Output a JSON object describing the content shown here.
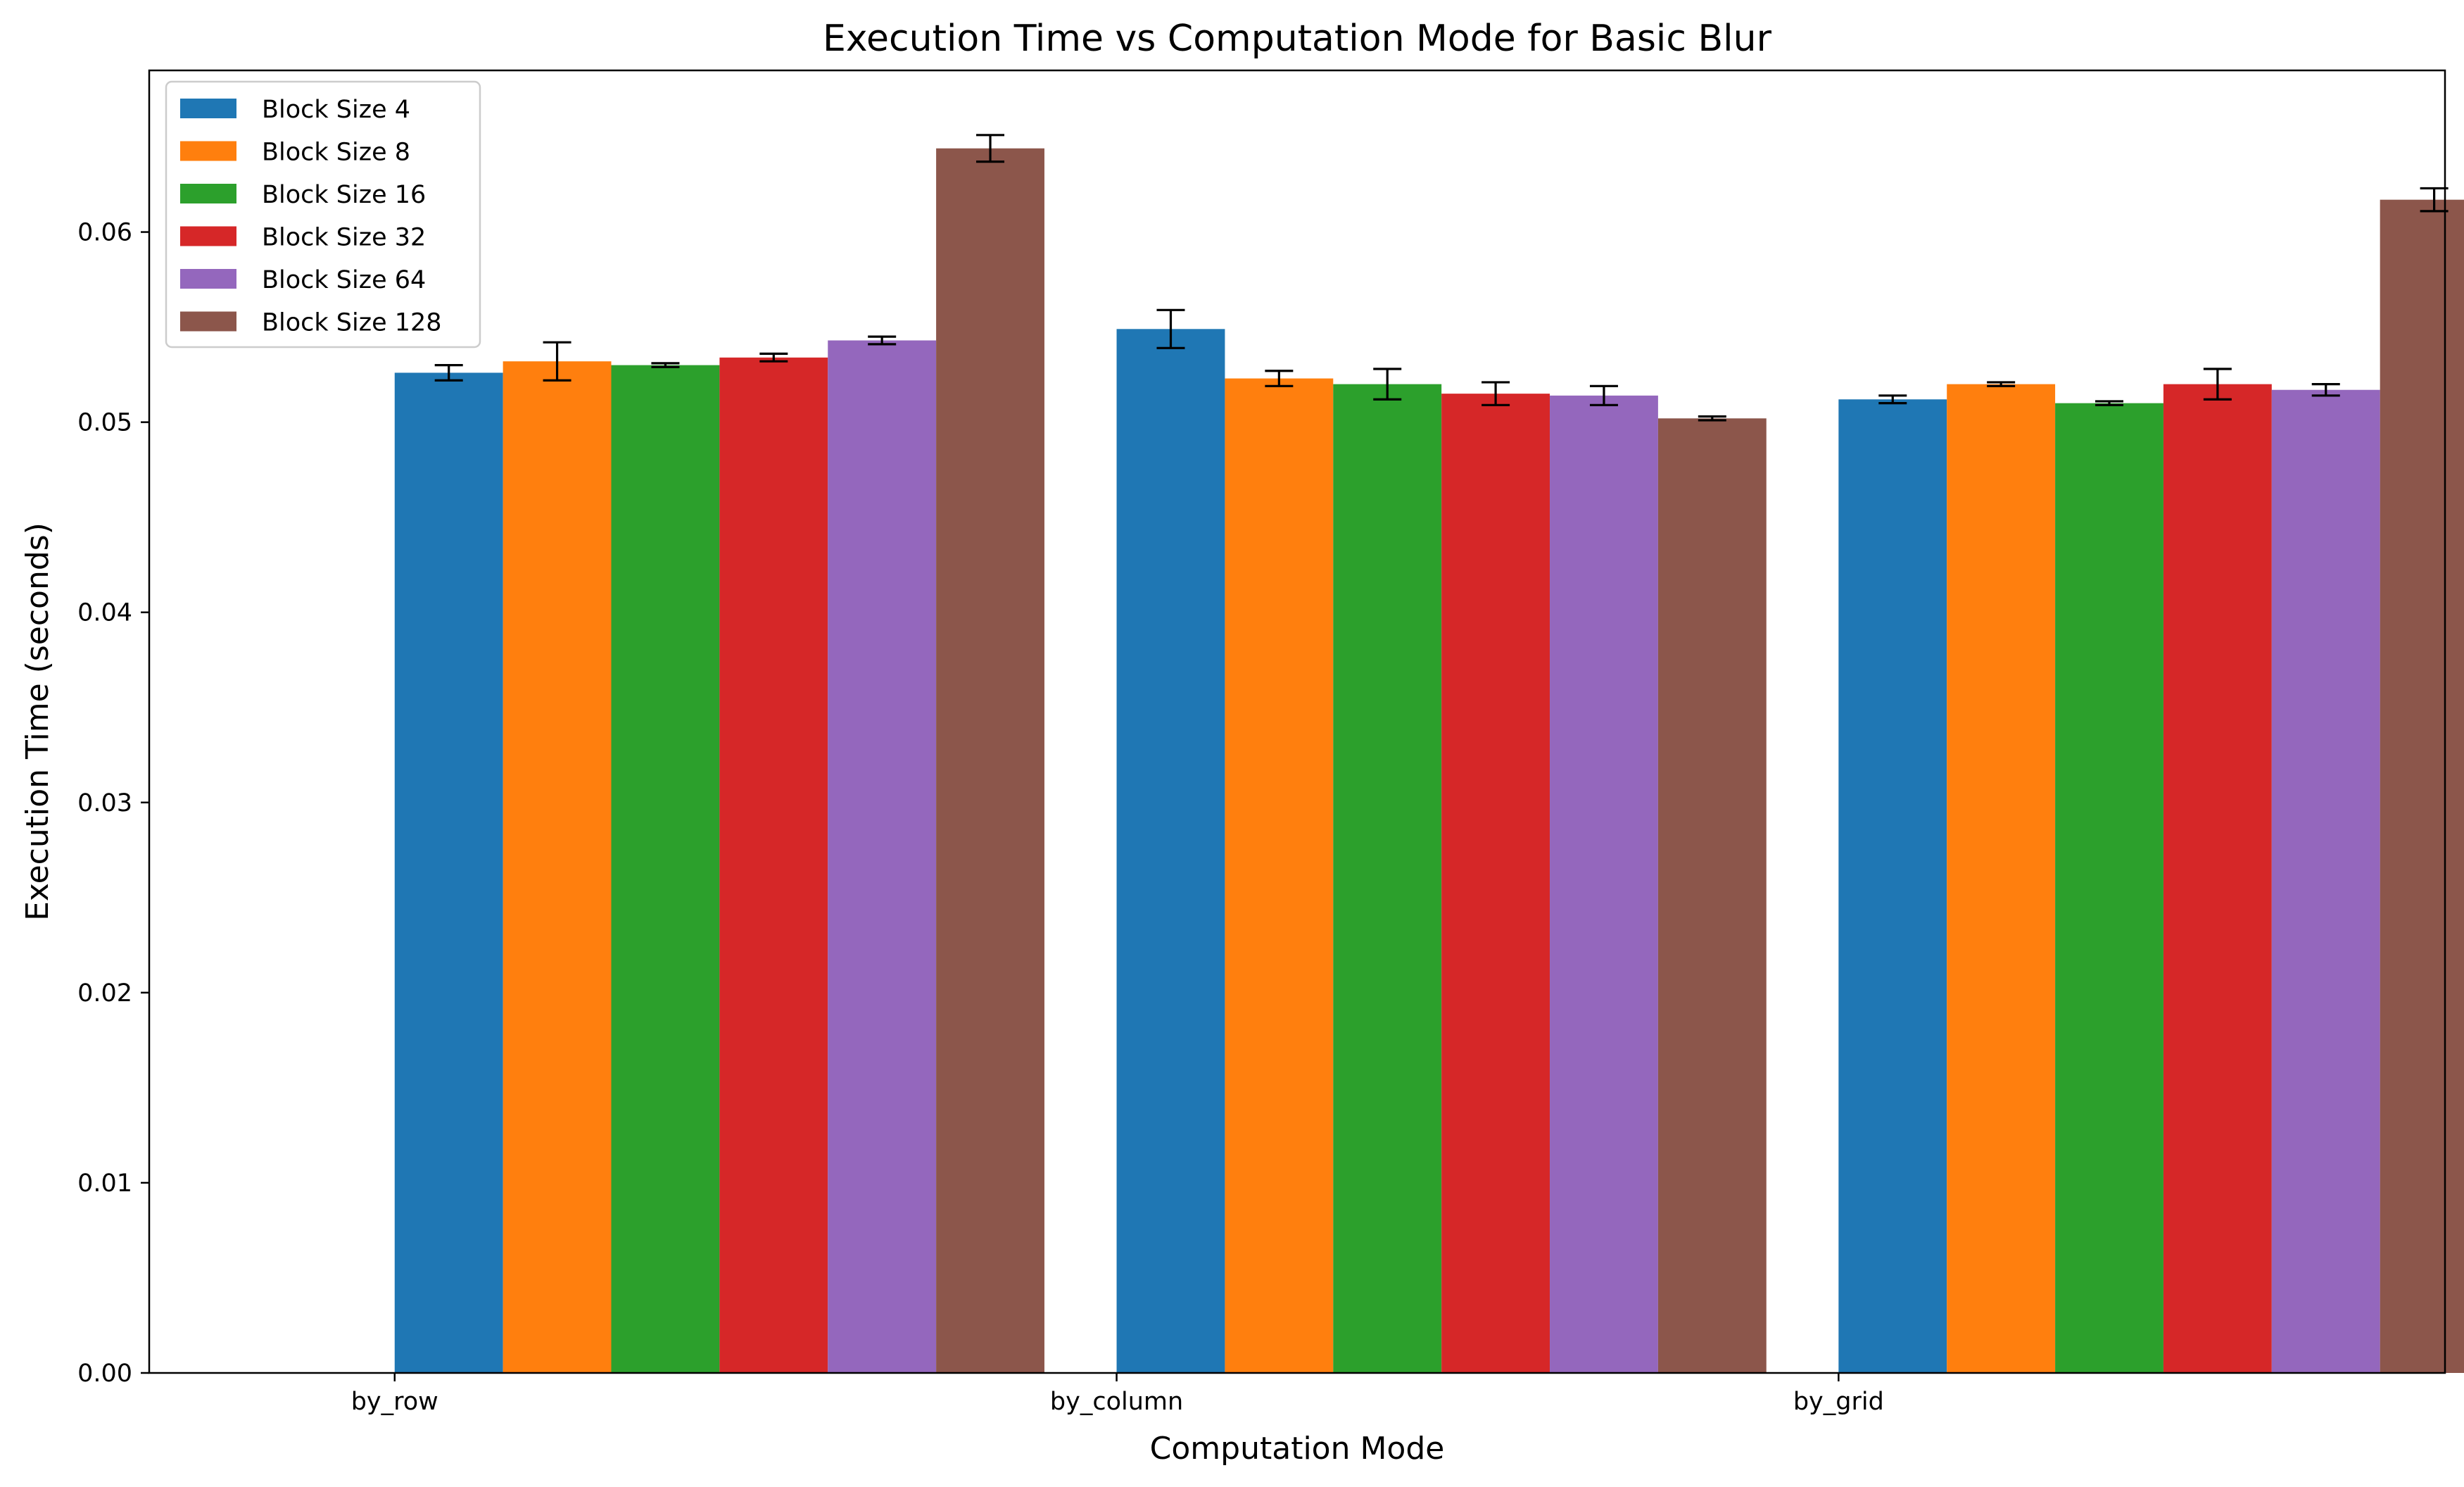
{
  "chart_data": {
    "type": "bar",
    "title": "Execution Time vs Computation Mode for Basic Blur",
    "xlabel": "Computation Mode",
    "ylabel": "Execution Time (seconds)",
    "categories": [
      "by_row",
      "by_column",
      "by_grid"
    ],
    "ylim": [
      0,
      0.0685
    ],
    "yticks": [
      0.0,
      0.01,
      0.02,
      0.03,
      0.04,
      0.05,
      0.06
    ],
    "ytick_labels": [
      "0.00",
      "0.01",
      "0.02",
      "0.03",
      "0.04",
      "0.05",
      "0.06"
    ],
    "grid": false,
    "legend_position": "top-left",
    "error_bars": true,
    "series": [
      {
        "name": "Block Size 4",
        "color": "#1f77b4",
        "values": [
          0.0526,
          0.0549,
          0.0512
        ],
        "errors": [
          0.0004,
          0.001,
          0.0002
        ]
      },
      {
        "name": "Block Size 8",
        "color": "#ff7f0e",
        "values": [
          0.0532,
          0.0523,
          0.052
        ],
        "errors": [
          0.001,
          0.0004,
          0.0001
        ]
      },
      {
        "name": "Block Size 16",
        "color": "#2ca02c",
        "values": [
          0.053,
          0.052,
          0.051
        ],
        "errors": [
          0.0001,
          0.0008,
          0.0001
        ]
      },
      {
        "name": "Block Size 32",
        "color": "#d62728",
        "values": [
          0.0534,
          0.0515,
          0.052
        ],
        "errors": [
          0.0002,
          0.0006,
          0.0008
        ]
      },
      {
        "name": "Block Size 64",
        "color": "#9467bd",
        "values": [
          0.0543,
          0.0514,
          0.0517
        ],
        "errors": [
          0.0002,
          0.0005,
          0.0003
        ]
      },
      {
        "name": "Block Size 128",
        "color": "#8c564b",
        "values": [
          0.0644,
          0.0502,
          0.0617
        ],
        "errors": [
          0.0007,
          0.0001,
          0.0006
        ]
      }
    ]
  }
}
